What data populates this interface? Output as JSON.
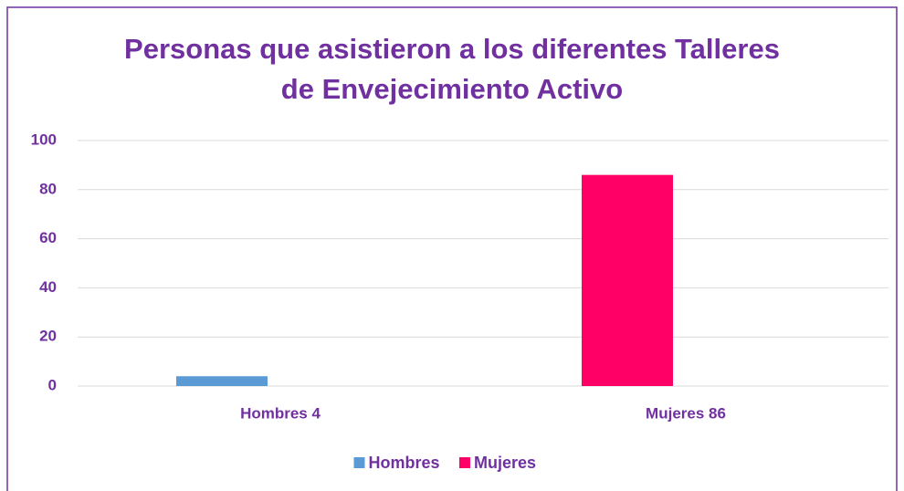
{
  "chart_data": {
    "type": "bar",
    "title": [
      "Personas que asistieron a los diferentes Talleres",
      "de Envejecimiento Activo"
    ],
    "categories": [
      "Hombres 4",
      "Mujeres 86"
    ],
    "series": [
      {
        "name": "Hombres",
        "color": "#5b9bd5",
        "values": [
          4,
          null
        ]
      },
      {
        "name": "Mujeres",
        "color": "#ff0066",
        "values": [
          null,
          86
        ]
      }
    ],
    "ylim": [
      0,
      100
    ],
    "yticks": [
      0,
      20,
      40,
      60,
      80,
      100
    ],
    "grid": true,
    "legend": "bottom"
  }
}
